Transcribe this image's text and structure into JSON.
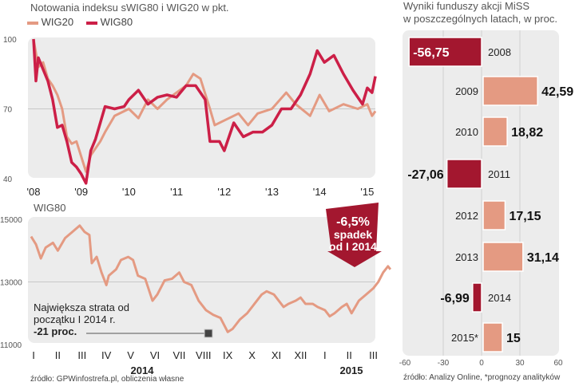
{
  "colors": {
    "wig20": "#e49a82",
    "wig80": "#cc1f47",
    "bar_pos": "#e49a82",
    "bar_neg": "#a3172f",
    "panel": "#ececec"
  },
  "chart_data": [
    {
      "type": "line",
      "title": "Notowania indeksu sWIG80 i WIG20 w pkt.",
      "ylim": [
        40,
        100
      ],
      "yticks": [
        "100",
        "70",
        "40"
      ],
      "ytick_values": [
        100,
        70,
        40
      ],
      "xticks": [
        "'08",
        "'09",
        "'10",
        "'11",
        "'12",
        "'13",
        "'14",
        "'15"
      ],
      "grid": "y=70",
      "legend": "top-left",
      "series": [
        {
          "name": "WIG20",
          "x": [
            2008.0,
            2008.1,
            2008.2,
            2008.3,
            2008.4,
            2008.5,
            2008.6,
            2008.7,
            2008.8,
            2008.9,
            2009.1,
            2009.2,
            2009.4,
            2009.5,
            2009.7,
            2010.0,
            2010.2,
            2010.4,
            2010.6,
            2010.8,
            2011.0,
            2011.2,
            2011.35,
            2011.5,
            2011.7,
            2011.8,
            2012.0,
            2012.3,
            2012.5,
            2012.7,
            2013.0,
            2013.3,
            2013.5,
            2013.8,
            2014.0,
            2014.2,
            2014.5,
            2014.8,
            2015.0,
            2015.1,
            2015.17
          ],
          "y": [
            100,
            88,
            90,
            83,
            80,
            76,
            70,
            58,
            55,
            56,
            43,
            50,
            56,
            60,
            67,
            70,
            66,
            74,
            70,
            74,
            77,
            80,
            85,
            83,
            70,
            63,
            65,
            68,
            63,
            68,
            70,
            77,
            72,
            67,
            76,
            69,
            72,
            70,
            72,
            67,
            69
          ]
        },
        {
          "name": "WIG80",
          "x": [
            2008.0,
            2008.05,
            2008.1,
            2008.2,
            2008.3,
            2008.4,
            2008.5,
            2008.6,
            2008.7,
            2008.8,
            2008.9,
            2009.0,
            2009.1,
            2009.2,
            2009.3,
            2009.5,
            2009.7,
            2009.9,
            2010.0,
            2010.2,
            2010.4,
            2010.6,
            2010.8,
            2011.0,
            2011.2,
            2011.4,
            2011.6,
            2011.7,
            2011.9,
            2012.0,
            2012.2,
            2012.4,
            2012.6,
            2012.8,
            2013.0,
            2013.2,
            2013.4,
            2013.6,
            2013.8,
            2013.95,
            2014.1,
            2014.3,
            2014.5,
            2014.7,
            2014.9,
            2015.0,
            2015.1,
            2015.17
          ],
          "y": [
            100,
            82,
            92,
            87,
            82,
            74,
            62,
            63,
            56,
            47,
            45,
            42,
            38,
            52,
            57,
            71,
            70,
            71,
            74,
            78,
            72,
            75,
            76,
            75,
            80,
            80,
            74,
            56,
            56,
            52,
            64,
            58,
            60,
            60,
            63,
            70,
            70,
            76,
            85,
            95,
            90,
            93,
            85,
            78,
            72,
            79,
            77,
            84
          ]
        }
      ]
    },
    {
      "type": "line",
      "title": "WIG80",
      "ylim": [
        11000,
        15000
      ],
      "yticks": [
        "15000",
        "13000",
        "11000"
      ],
      "ytick_values": [
        15000,
        13000,
        11000
      ],
      "xticks": [
        "I",
        "II",
        "III",
        "IV",
        "V",
        "VI",
        "VII",
        "VIII",
        "IX",
        "X",
        "XI",
        "XII",
        "I",
        "II",
        "III"
      ],
      "xyears": [
        "2014",
        "2015"
      ],
      "grid": "y=13000",
      "series": [
        {
          "x_month_index": [
            -0.1,
            0.1,
            0.3,
            0.5,
            0.8,
            1.0,
            1.3,
            1.6,
            1.9,
            2.1,
            2.3,
            2.4,
            2.6,
            2.8,
            3.0,
            3.1,
            3.4,
            3.6,
            3.9,
            4.1,
            4.3,
            4.6,
            4.9,
            5.1,
            5.4,
            5.7,
            6.0,
            6.2,
            6.5,
            6.8,
            7.1,
            7.4,
            7.7,
            8.0,
            8.2,
            8.5,
            8.8,
            9.1,
            9.4,
            9.6,
            9.9,
            10.1,
            10.3,
            10.5,
            10.8,
            11.0,
            11.2,
            11.5,
            11.7,
            12.0,
            12.2,
            12.4,
            12.7,
            12.9,
            13.1,
            13.4,
            13.7,
            14.0,
            14.2,
            14.4,
            14.6,
            14.7
          ],
          "y": [
            14450,
            14200,
            13750,
            14100,
            14250,
            14000,
            14400,
            14600,
            14800,
            14600,
            14500,
            13600,
            13800,
            13300,
            12900,
            13200,
            13400,
            13700,
            13800,
            13700,
            13200,
            13100,
            12400,
            12600,
            13050,
            13100,
            13300,
            13000,
            12900,
            12400,
            12100,
            11950,
            11850,
            11400,
            11500,
            11800,
            12000,
            12300,
            12600,
            12700,
            12600,
            12400,
            12200,
            12300,
            12400,
            12500,
            12300,
            12300,
            12200,
            12100,
            11900,
            12000,
            12200,
            12300,
            12000,
            12400,
            12600,
            12800,
            13000,
            13300,
            13500,
            13400
          ]
        }
      ],
      "annotations": {
        "min_label_1": "Największa strata od",
        "min_label_2": "początku I 2014 r.",
        "min_value": "-21 proc.",
        "badge_1": "-6,5%",
        "badge_2": "spadek",
        "badge_3": "od I 2014"
      }
    },
    {
      "type": "bar",
      "orientation": "horizontal",
      "title_1": "Wyniki funduszy akcji MiSS",
      "title_2": "w poszczególnych latach, w proc.",
      "xlim": [
        -60,
        60
      ],
      "xticks": [
        "-60",
        "-30",
        "0",
        "30",
        "60"
      ],
      "xtick_values": [
        -60,
        -30,
        0,
        30,
        60
      ],
      "categories": [
        "2008",
        "2009",
        "2010",
        "2011",
        "2012",
        "2013",
        "2014",
        "2015*"
      ],
      "values": [
        -56.75,
        42.59,
        18.82,
        -27.06,
        17.15,
        31.14,
        -6.99,
        15
      ],
      "labels": [
        "-56,75",
        "42,59",
        "18,82",
        "-27,06",
        "17,15",
        "31,14",
        "-6,99",
        "15"
      ]
    }
  ],
  "sources": {
    "left": "źródło: GPWinfostrefa.pl, obliczenia własne",
    "right": "źródło: Analizy Online, *prognozy analityków"
  }
}
